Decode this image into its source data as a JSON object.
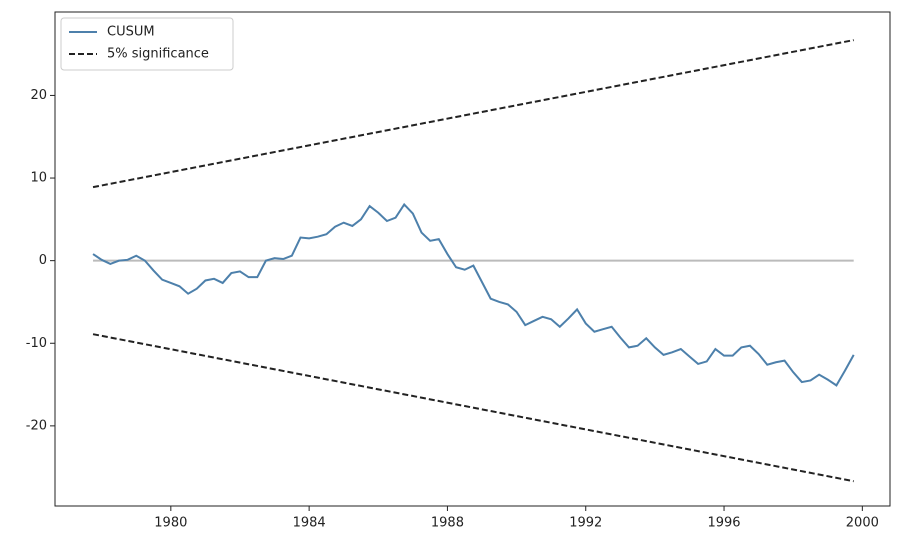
{
  "chart_data": {
    "type": "line",
    "x": [
      1977.75,
      1978,
      1978.25,
      1978.5,
      1978.75,
      1979,
      1979.25,
      1979.5,
      1979.75,
      1980,
      1980.25,
      1980.5,
      1980.75,
      1981,
      1981.25,
      1981.5,
      1981.75,
      1982,
      1982.25,
      1982.5,
      1982.75,
      1983,
      1983.25,
      1983.5,
      1983.75,
      1984,
      1984.25,
      1984.5,
      1984.75,
      1985,
      1985.25,
      1985.5,
      1985.75,
      1986,
      1986.25,
      1986.5,
      1986.75,
      1987,
      1987.25,
      1987.5,
      1987.75,
      1988,
      1988.25,
      1988.5,
      1988.75,
      1989,
      1989.25,
      1989.5,
      1989.75,
      1990,
      1990.25,
      1990.5,
      1990.75,
      1991,
      1991.25,
      1991.5,
      1991.75,
      1992,
      1992.25,
      1992.5,
      1992.75,
      1993,
      1993.25,
      1993.5,
      1993.75,
      1994,
      1994.25,
      1994.5,
      1994.75,
      1995,
      1995.25,
      1995.5,
      1995.75,
      1996,
      1996.25,
      1996.5,
      1996.75,
      1997,
      1997.25,
      1997.5,
      1997.75,
      1998,
      1998.25,
      1998.5,
      1998.75,
      1999,
      1999.25,
      1999.5,
      1999.75
    ],
    "series": [
      {
        "name": "CUSUM",
        "color": "#4d80ab",
        "values": [
          0.8,
          0.1,
          -0.4,
          0.0,
          0.1,
          0.6,
          0.0,
          -1.2,
          -2.3,
          -2.7,
          -3.1,
          -4.0,
          -3.4,
          -2.4,
          -2.2,
          -2.7,
          -1.5,
          -1.3,
          -2.0,
          -2.0,
          0.0,
          0.3,
          0.2,
          0.6,
          2.8,
          2.7,
          2.9,
          3.2,
          4.1,
          4.6,
          4.2,
          5.0,
          6.6,
          5.8,
          4.8,
          5.2,
          6.8,
          5.7,
          3.4,
          2.4,
          2.6,
          0.8,
          -0.8,
          -1.1,
          -0.6,
          -2.6,
          -4.6,
          -5.0,
          -5.3,
          -6.2,
          -7.8,
          -7.3,
          -6.8,
          -7.1,
          -8.0,
          -7.0,
          -5.9,
          -7.6,
          -8.6,
          -8.3,
          -8.0,
          -9.3,
          -10.5,
          -10.3,
          -9.4,
          -10.5,
          -11.4,
          -11.1,
          -10.7,
          -11.6,
          -12.5,
          -12.2,
          -10.7,
          -11.5,
          -11.5,
          -10.5,
          -10.3,
          -11.3,
          -12.6,
          -12.3,
          -12.1,
          -13.5,
          -14.7,
          -14.5,
          -13.8,
          -14.4,
          -15.1,
          -13.3,
          -11.4
        ]
      }
    ],
    "significance": {
      "name": "5% significance",
      "color": "#222222",
      "x": [
        1977.75,
        1999.75
      ],
      "upper": [
        8.9,
        26.7
      ],
      "lower": [
        -8.9,
        -26.7
      ]
    },
    "reference_line": {
      "value": 0,
      "color": "#bbbbbb"
    },
    "xlim": [
      1976.65,
      2000.8
    ],
    "ylim": [
      -29.7,
      30.1
    ],
    "xticks": [
      1980,
      1984,
      1988,
      1992,
      1996,
      2000
    ],
    "yticks": [
      -20,
      -10,
      0,
      10,
      20
    ],
    "legend": "upper left"
  }
}
